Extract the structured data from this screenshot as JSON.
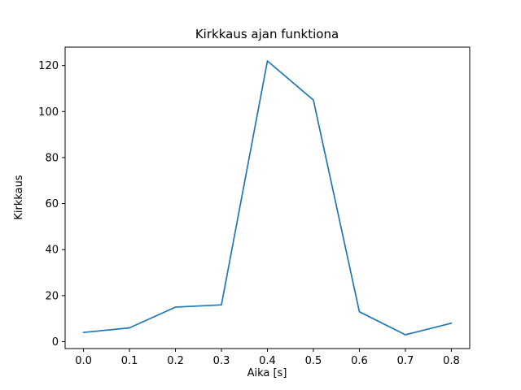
{
  "chart_data": {
    "type": "line",
    "title": "Kirkkaus ajan funktiona",
    "xlabel": "Aika [s]",
    "ylabel": "Kirkkaus",
    "x": [
      0.0,
      0.1,
      0.2,
      0.3,
      0.4,
      0.5,
      0.6,
      0.7,
      0.8
    ],
    "y": [
      4,
      6,
      15,
      16,
      122,
      105,
      13,
      3,
      8
    ],
    "xtick_labels": [
      "0.0",
      "0.1",
      "0.2",
      "0.3",
      "0.4",
      "0.5",
      "0.6",
      "0.7",
      "0.8"
    ],
    "ytick_labels": [
      "0",
      "20",
      "40",
      "60",
      "80",
      "100",
      "120"
    ],
    "yticks": [
      0,
      20,
      40,
      60,
      80,
      100,
      120
    ],
    "xlim": [
      -0.04,
      0.84
    ],
    "ylim": [
      -3,
      128
    ],
    "grid": false,
    "legend": null,
    "line_color": "#1f77b4",
    "axis_color": "#000000",
    "background_color": "#ffffff"
  }
}
